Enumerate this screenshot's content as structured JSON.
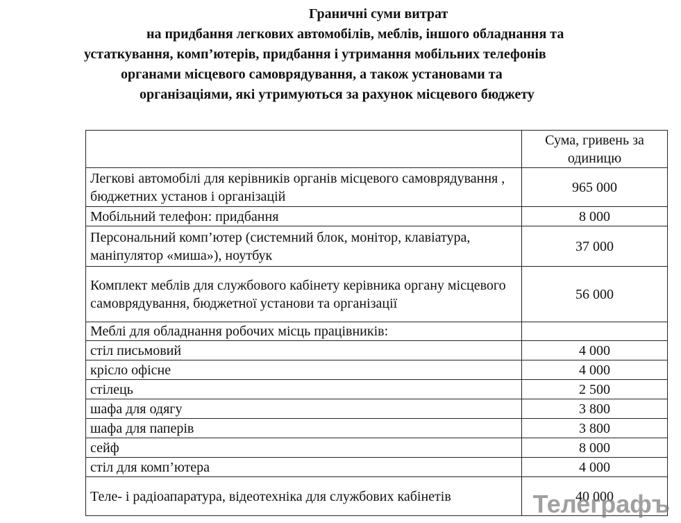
{
  "header": {
    "title_lines": [
      "Граничні суми витрат",
      "на придбання легкових автомобілів, меблів, іншого обладнання та",
      "устаткування, комп’ютерів, придбання і утримання мобільних телефонів",
      "органами місцевого самоврядування, а також установами та",
      "організаціями, які утримуються за рахунок місцевого бюджету"
    ]
  },
  "table": {
    "column_header": "Сума, гривень за одиницю",
    "rows": [
      [
        "Легкові автомобілі для керівників органів місцевого самоврядування , бюджетних установ і організацій",
        "965 000"
      ],
      [
        "Мобільний телефон: придбання",
        "8 000"
      ],
      [
        "Персональний комп’ютер (системний блок, монітор, клавіатура, маніпулятор «миша»), ноутбук",
        "37 000"
      ],
      [
        "Комплект меблів для службового кабінету керівника органу місцевого самоврядування, бюджетної установи та організації",
        "56 000"
      ],
      [
        "Меблі для обладнання робочих місць працівників:",
        null
      ],
      [
        "стіл письмовий",
        "4 000"
      ],
      [
        "крісло офісне",
        "4 000"
      ],
      [
        "стілець",
        "2 500"
      ],
      [
        "шафа для одягу",
        "3 800"
      ],
      [
        "шафа для паперів",
        "3 800"
      ],
      [
        "сейф",
        "8 000"
      ],
      [
        "стіл для комп’ютера",
        "4 000"
      ],
      [
        "Теле- і радіоапаратура, відеотехніка для службових кабінетів",
        "40 000"
      ]
    ]
  },
  "watermark": "Телеграфъ"
}
